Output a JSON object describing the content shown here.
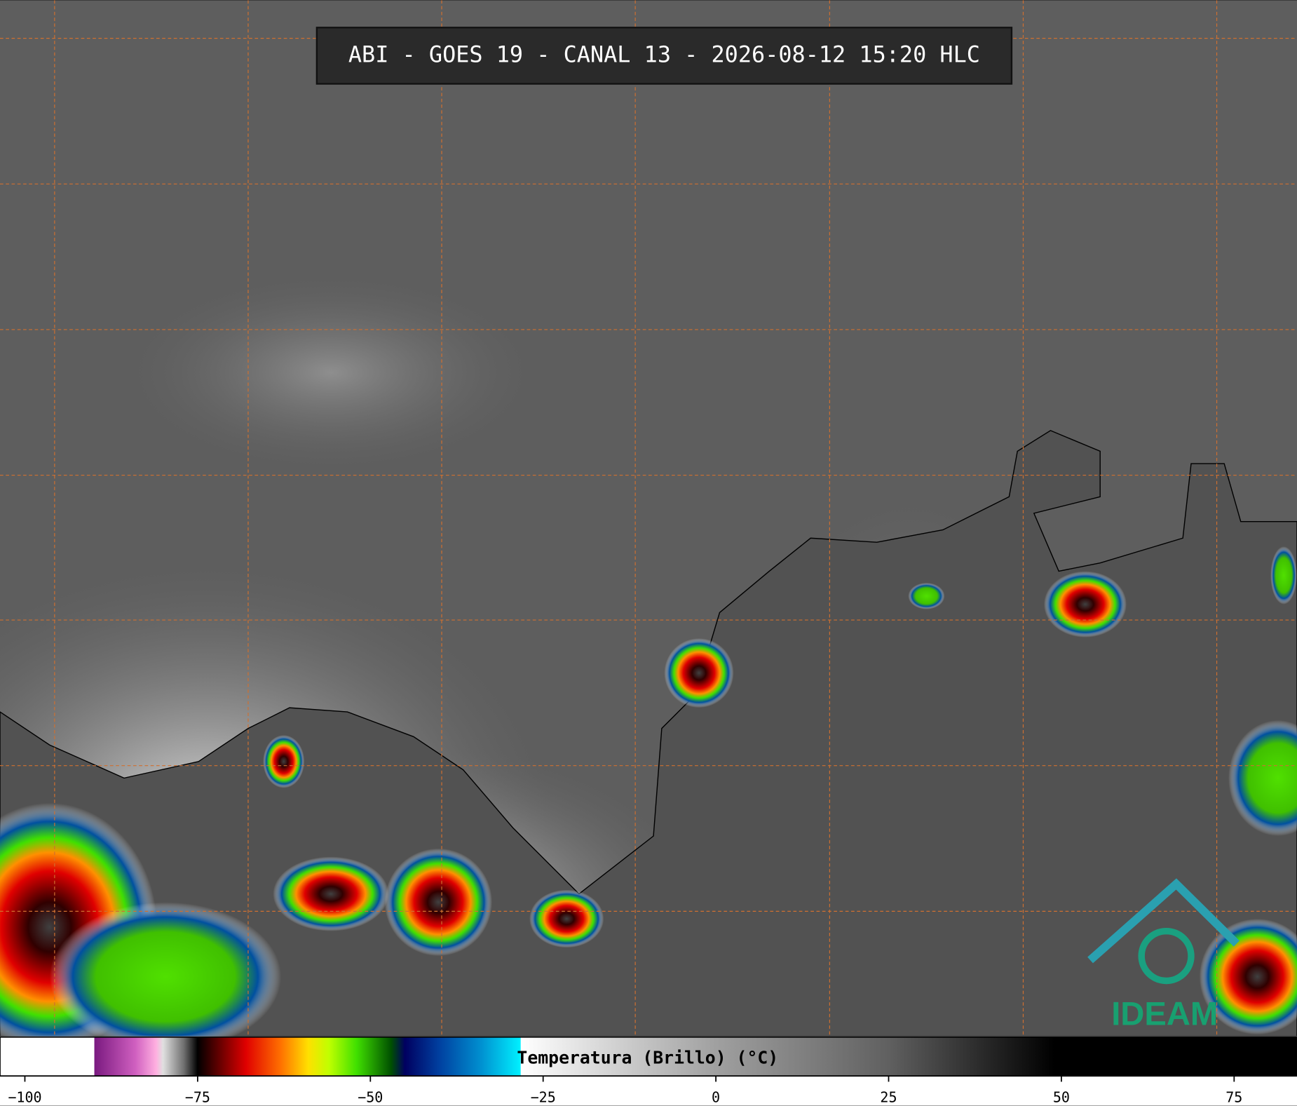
{
  "title": "ABI - GOES 19 - CANAL 13 - 2026-08-12 15:20 HLC",
  "logo": "IDEAM",
  "colorbar": {
    "label": "Temperatura (Brillo) (°C)",
    "lim": [
      -103.6,
      84.1
    ],
    "ticks": [
      {
        "value": -100,
        "label": "−100"
      },
      {
        "value": -75,
        "label": "−75"
      },
      {
        "value": -50,
        "label": "−50"
      },
      {
        "value": -25,
        "label": "−25"
      },
      0,
      25,
      50,
      75
    ],
    "colormap": [
      [
        -103.6,
        "#ffffff"
      ],
      [
        -90,
        "#ffffff"
      ],
      [
        -89.9,
        "#7a1a80"
      ],
      [
        -84,
        "#d060c0"
      ],
      [
        -81,
        "#ffb0e0"
      ],
      [
        -80,
        "#e0e0e0"
      ],
      [
        -77,
        "#707070"
      ],
      [
        -75,
        "#000000"
      ],
      [
        -72,
        "#600000"
      ],
      [
        -68,
        "#e00000"
      ],
      [
        -63,
        "#ff7000"
      ],
      [
        -59,
        "#ffe000"
      ],
      [
        -56,
        "#c0ff00"
      ],
      [
        -52,
        "#40e000"
      ],
      [
        -47,
        "#005000"
      ],
      [
        -45,
        "#000060"
      ],
      [
        -40,
        "#0040a0"
      ],
      [
        -34,
        "#0090d0"
      ],
      [
        -28.3,
        "#00f0ff"
      ],
      [
        -28.2,
        "#ffffff"
      ],
      [
        0,
        "#a0a0a0"
      ],
      [
        25,
        "#606060"
      ],
      [
        49,
        "#000000"
      ],
      [
        84.1,
        "#000000"
      ]
    ]
  }
}
